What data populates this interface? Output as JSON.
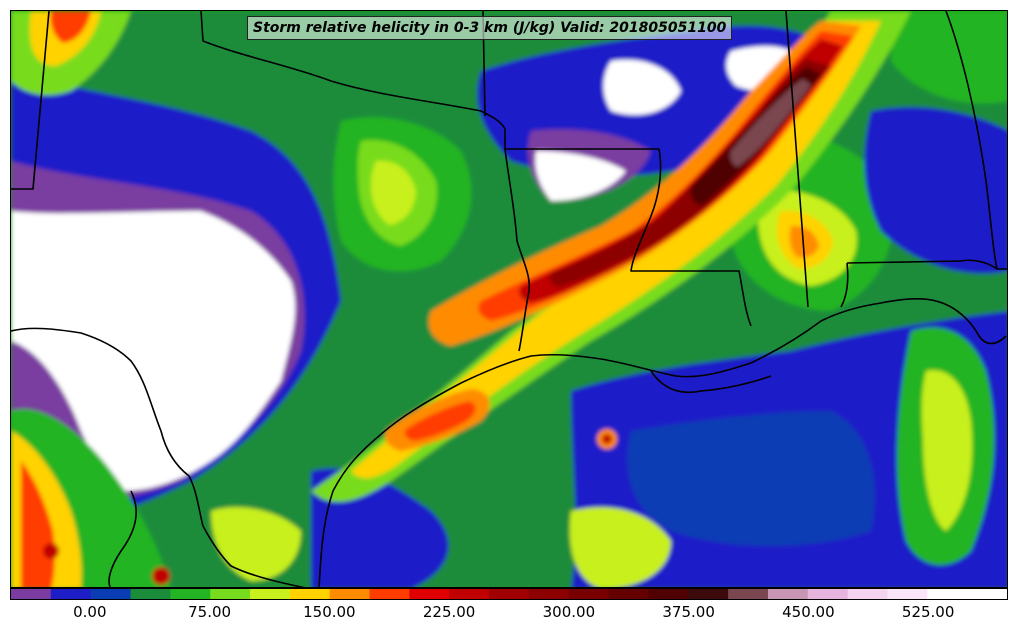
{
  "title": "Storm relative helicity in 0-3 km (J/kg) Valid: 201805051100",
  "colorbar": {
    "tick_labels": [
      "0.00",
      "75.00",
      "150.00",
      "225.00",
      "300.00",
      "375.00",
      "450.00",
      "525.00"
    ],
    "tick_values": [
      0,
      75,
      150,
      225,
      300,
      375,
      450,
      525
    ],
    "min_value": -50,
    "max_value": 575,
    "color_bins": [
      {
        "from": -50,
        "to": -25,
        "color": "#7a3ca0"
      },
      {
        "from": -25,
        "to": 0,
        "color": "#1e1ec8"
      },
      {
        "from": 0,
        "to": 25,
        "color": "#0a3cb4"
      },
      {
        "from": 25,
        "to": 50,
        "color": "#1a8c3a"
      },
      {
        "from": 50,
        "to": 75,
        "color": "#23b423"
      },
      {
        "from": 75,
        "to": 100,
        "color": "#78dc1e"
      },
      {
        "from": 100,
        "to": 125,
        "color": "#c8f01e"
      },
      {
        "from": 125,
        "to": 150,
        "color": "#ffd200"
      },
      {
        "from": 150,
        "to": 175,
        "color": "#ff8c00"
      },
      {
        "from": 175,
        "to": 200,
        "color": "#ff3c00"
      },
      {
        "from": 200,
        "to": 225,
        "color": "#e10000"
      },
      {
        "from": 225,
        "to": 250,
        "color": "#c00000"
      },
      {
        "from": 250,
        "to": 275,
        "color": "#a00000"
      },
      {
        "from": 275,
        "to": 300,
        "color": "#8c0000"
      },
      {
        "from": 300,
        "to": 325,
        "color": "#780000"
      },
      {
        "from": 325,
        "to": 350,
        "color": "#640000"
      },
      {
        "from": 350,
        "to": 375,
        "color": "#500000"
      },
      {
        "from": 375,
        "to": 400,
        "color": "#3c0a0a"
      },
      {
        "from": 400,
        "to": 425,
        "color": "#7a4650"
      },
      {
        "from": 425,
        "to": 450,
        "color": "#c896b4"
      },
      {
        "from": 450,
        "to": 475,
        "color": "#e6b4dc"
      },
      {
        "from": 475,
        "to": 500,
        "color": "#f5d2f0"
      },
      {
        "from": 500,
        "to": 525,
        "color": "#fae6f8"
      },
      {
        "from": 525,
        "to": 575,
        "color": "#ffffff"
      }
    ]
  },
  "map_colors": {
    "background_green": "#19a019",
    "outline": "#000000"
  }
}
